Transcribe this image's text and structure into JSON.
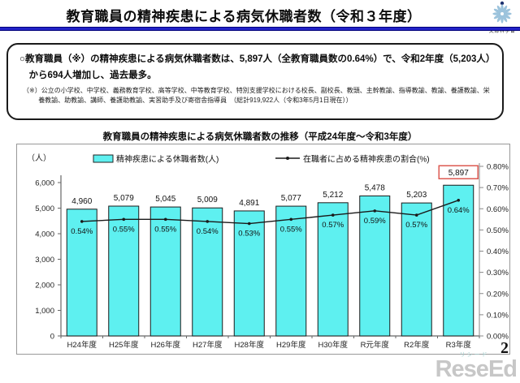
{
  "header": {
    "title": "教育職員の精神疾患による病気休職者数（令和３年度）",
    "logo_text": "文部科学省"
  },
  "summary": {
    "main": "○教育職員（※）の精神疾患による病気休職者数は、5,897人（全教育職員数の0.64%）で、令和2年度（5,203人）から694人増加し、過去最多。",
    "note": "（※）公立の小学校、中学校、義務教育学校、高等学校、中等教育学校、特別支援学校における校長、副校長、教頭、主幹教諭、指導教諭、教諭、養護教諭、栄養教諭、助教諭、講師、養護助教諭、実習助手及び寄宿舎指導員　（総計919,922人（令和3年5月1日現在））"
  },
  "chart_data": {
    "type": "bar",
    "title": "教育職員の精神疾患による病気休職者数の推移（平成24年度～令和3年度）",
    "categories": [
      "H24年度",
      "H25年度",
      "H26年度",
      "H27年度",
      "H28年度",
      "H29年度",
      "H30年度",
      "R元年度",
      "R2年度",
      "R3年度"
    ],
    "series": [
      {
        "name": "精神疾患による休職者数(人)",
        "kind": "bar",
        "values": [
          4960,
          5079,
          5045,
          5009,
          4891,
          5077,
          5212,
          5478,
          5203,
          5897
        ],
        "labels": [
          "4,960",
          "5,079",
          "5,045",
          "5,009",
          "4,891",
          "5,077",
          "5,212",
          "5,478",
          "5,203",
          "5,897"
        ],
        "color": "#5ef0f0"
      },
      {
        "name": "在職者に占める精神疾患の割合(%)",
        "kind": "line",
        "values": [
          0.54,
          0.55,
          0.55,
          0.54,
          0.53,
          0.55,
          0.57,
          0.59,
          0.57,
          0.64
        ],
        "labels": [
          "0.54%",
          "0.55%",
          "0.55%",
          "0.54%",
          "0.53%",
          "0.55%",
          "0.57%",
          "0.59%",
          "0.57%",
          "0.64%"
        ],
        "color": "#1a1a1a"
      }
    ],
    "left_axis": {
      "label": "（人）",
      "min": 0,
      "max": 6000,
      "step": 1000,
      "ticks": [
        "0",
        "1,000",
        "2,000",
        "3,000",
        "4,000",
        "5,000",
        "6,000"
      ]
    },
    "right_axis": {
      "min": 0,
      "max": 0.8,
      "step": 0.1,
      "ticks": [
        "0.00%",
        "0.10%",
        "0.20%",
        "0.30%",
        "0.40%",
        "0.50%",
        "0.60%",
        "0.70%",
        "0.80%"
      ]
    },
    "highlight": {
      "series": 0,
      "index": 9,
      "box_color": "#dd5a52"
    },
    "legend_position": "top",
    "grid": false
  },
  "footer": {
    "page_number": "2",
    "watermark_main": "ReseEd",
    "watermark_ruby": "リシード"
  }
}
